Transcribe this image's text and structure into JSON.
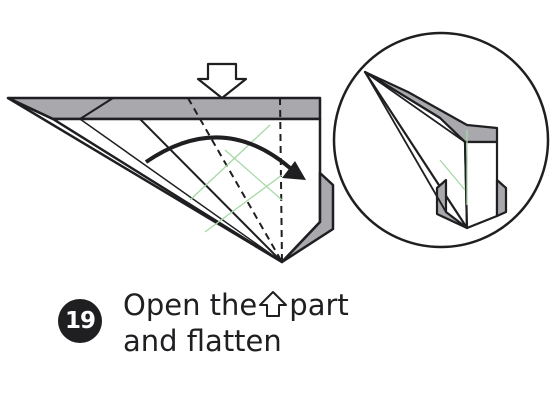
{
  "step": {
    "number": "19",
    "caption_line1_before": "Open the",
    "caption_line1_after": "part",
    "caption_line2": "and flatten"
  },
  "icons": {
    "inline": "up-arrow-outline-icon",
    "push": "down-arrow-outline-icon",
    "rotate": "curved-arrow-icon"
  },
  "colors": {
    "ink": "#1f1f22",
    "paper_gray": "#a9a9ad",
    "crease_green": "#a6d8a6",
    "background": "#ffffff"
  }
}
